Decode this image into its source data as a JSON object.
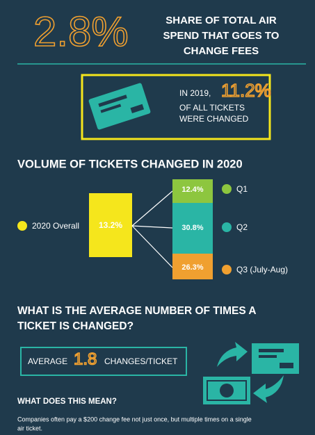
{
  "header": {
    "big_stat": "2.8%",
    "lines": [
      "SHARE OF TOTAL AIR",
      "SPEND THAT GOES TO",
      "CHANGE FEES"
    ]
  },
  "callout": {
    "lead": "IN 2019,",
    "stat": "11.2%",
    "lines": [
      "OF  ALL TICKETS",
      "WERE CHANGED"
    ]
  },
  "volume": {
    "title": "VOLUME OF TICKETS CHANGED IN 2020",
    "overall": {
      "label": "2020 Overall",
      "value": "13.2%"
    },
    "quarters": [
      {
        "label": "Q1",
        "value": "12.4%"
      },
      {
        "label": "Q2",
        "value": "30.8%"
      },
      {
        "label": "Q3 (July-Aug)",
        "value": "26.3%"
      }
    ]
  },
  "average": {
    "title_lines": [
      "WHAT IS THE AVERAGE NUMBER OF TIMES A",
      "TICKET IS CHANGED?"
    ],
    "prefix": "AVERAGE",
    "value": "1.8",
    "suffix": "CHANGES/TICKET"
  },
  "meaning": {
    "title": "WHAT DOES THIS MEAN?",
    "lines": [
      "Companies often pay a $200 change fee not just once, but multiple times on a single",
      "air ticket."
    ]
  }
}
